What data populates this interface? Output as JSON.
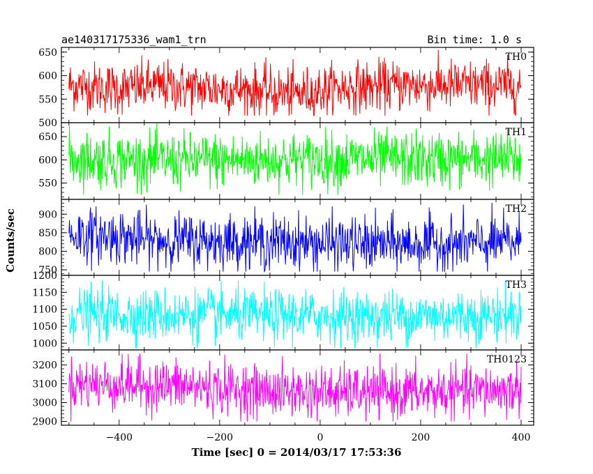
{
  "chart_data": {
    "type": "line",
    "title_left": "ae140317175336_wam1_trn",
    "title_right": "Bin time: 1.0 s",
    "xlabel": "Time [sec] 0 = 2014/03/17 17:53:36",
    "ylabel": "Counts/sec",
    "xlim": [
      -515,
      425
    ],
    "x_range": [
      -500,
      400
    ],
    "x_ticks": [
      -400,
      -200,
      0,
      200,
      400
    ],
    "x_tick_labels": [
      "−400",
      "−200",
      "0",
      "200",
      "400"
    ],
    "grid": false,
    "panels": [
      {
        "label": "TH0",
        "color": "#ff0000",
        "ylim": [
          500,
          660
        ],
        "y_ticks": [
          500,
          550,
          600,
          650
        ],
        "mean": 575,
        "range": [
          515,
          655
        ],
        "modulation": [
          [
            -500,
            580
          ],
          [
            -400,
            572
          ],
          [
            -330,
            578
          ],
          [
            -150,
            570
          ],
          [
            -50,
            560
          ],
          [
            50,
            575
          ],
          [
            200,
            580
          ],
          [
            400,
            578
          ]
        ]
      },
      {
        "label": "TH1",
        "color": "#00ff00",
        "ylim": [
          515,
          680
        ],
        "y_ticks": [
          550,
          600,
          650
        ],
        "mean": 600,
        "range": [
          525,
          680
        ],
        "modulation": [
          [
            -500,
            602
          ],
          [
            -300,
            598
          ],
          [
            0,
            600
          ],
          [
            400,
            601
          ]
        ]
      },
      {
        "label": "TH2",
        "color": "#0000ff",
        "ylim": [
          735,
          940
        ],
        "y_ticks": [
          750,
          800,
          850,
          900
        ],
        "mean": 830,
        "range": [
          745,
          935
        ],
        "modulation": [
          [
            -500,
            845
          ],
          [
            -400,
            840
          ],
          [
            -350,
            830
          ],
          [
            -100,
            825
          ],
          [
            100,
            818
          ],
          [
            300,
            820
          ],
          [
            400,
            825
          ]
        ]
      },
      {
        "label": "TH3",
        "color": "#00ffff",
        "ylim": [
          980,
          1200
        ],
        "y_ticks": [
          1000,
          1050,
          1100,
          1150,
          1200
        ],
        "mean": 1082,
        "range": [
          985,
          1185
        ],
        "modulation": [
          [
            -500,
            1085
          ],
          [
            -200,
            1082
          ],
          [
            100,
            1078
          ],
          [
            400,
            1083
          ]
        ]
      },
      {
        "label": "TH0123",
        "color": "#ff00ff",
        "ylim": [
          2880,
          3280
        ],
        "y_ticks": [
          2900,
          3000,
          3100,
          3200
        ],
        "mean": 3075,
        "range": [
          2900,
          3260
        ],
        "modulation": [
          [
            -500,
            3100
          ],
          [
            -300,
            3090
          ],
          [
            -100,
            3060
          ],
          [
            100,
            3050
          ],
          [
            300,
            3060
          ],
          [
            400,
            3070
          ]
        ]
      }
    ]
  }
}
